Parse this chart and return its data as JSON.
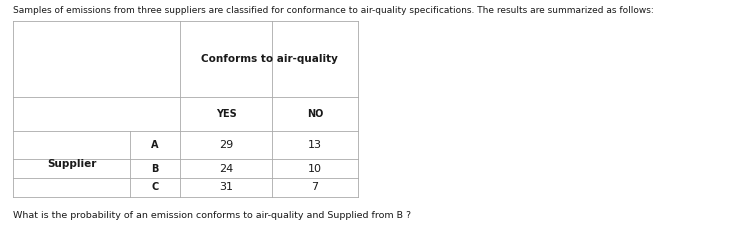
{
  "title_text": "Samples of emissions from three suppliers are classified for conformance to air-quality specifications. The results are summarized as follows:",
  "header_span": "Conforms to air-quality",
  "col_headers": [
    "YES",
    "NO"
  ],
  "row_label_group": "Supplier",
  "row_labels": [
    "A",
    "B",
    "C"
  ],
  "data": [
    [
      29,
      13
    ],
    [
      24,
      10
    ],
    [
      31,
      7
    ]
  ],
  "question": "What is the probability of an emission conforms to air-quality and Supplied from B ?",
  "bg_color": "#ffffff",
  "text_color": "#1a1a1a",
  "border_color": "#aaaaaa",
  "font_size_title": 6.5,
  "font_size_header": 7.5,
  "font_size_sublabel": 7.0,
  "font_size_data": 8.0,
  "font_size_question": 6.8,
  "fig_width": 7.46,
  "fig_height": 2.39,
  "dpi": 100
}
